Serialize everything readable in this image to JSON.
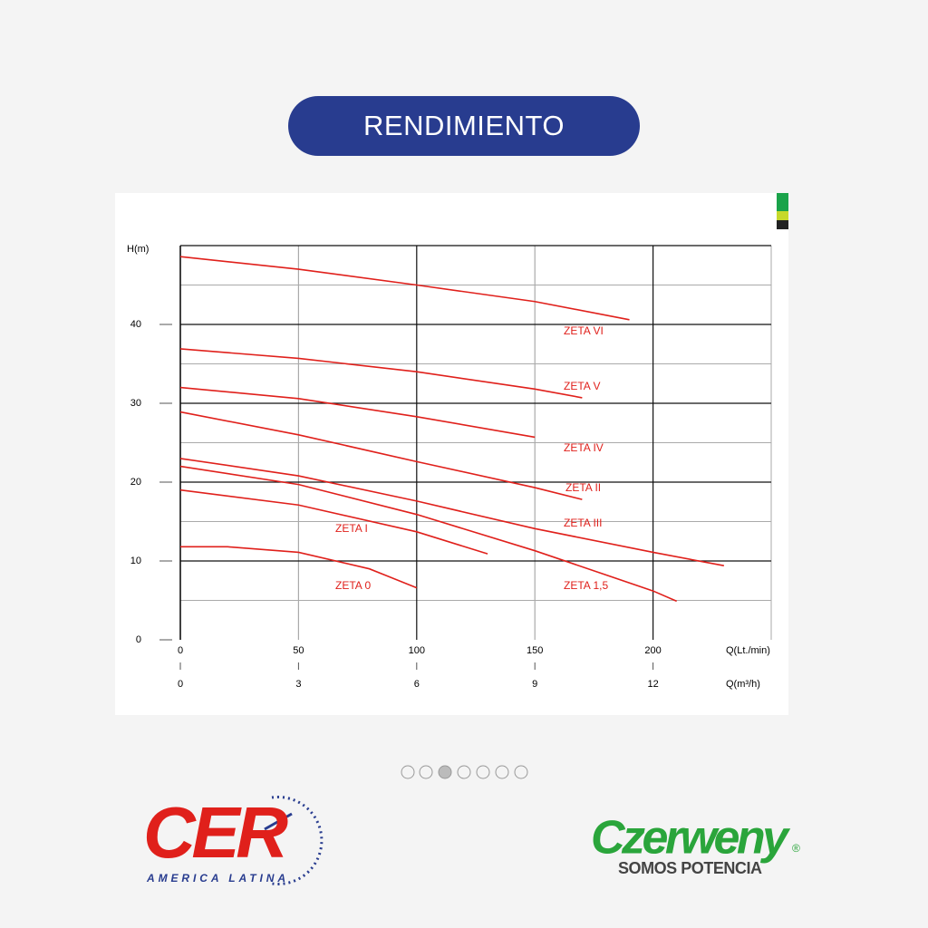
{
  "header": {
    "title": "RENDIMIENTO"
  },
  "chart_data": {
    "type": "line",
    "y_label": "H(m)",
    "x_label": "Q(Lt./min)",
    "x2_label": "Q(m³/h)",
    "xlim": [
      0,
      250
    ],
    "xticks": [
      0,
      50,
      100,
      150,
      200
    ],
    "x2lim": [
      0,
      15
    ],
    "x2ticks": [
      0,
      3,
      6,
      9,
      12
    ],
    "ylim": [
      0,
      50
    ],
    "yticks": [
      0,
      10,
      20,
      30,
      40
    ],
    "y_minor_grid": [
      5,
      15,
      25,
      35,
      45
    ],
    "grid": true,
    "series": [
      {
        "name": "ZETA VI",
        "color": "#e0201b",
        "x": [
          0,
          50,
          100,
          150,
          190
        ],
        "values": [
          48.6,
          47.0,
          45.0,
          42.9,
          40.6
        ]
      },
      {
        "name": "ZETA V",
        "color": "#e0201b",
        "x": [
          0,
          50,
          100,
          150,
          170
        ],
        "values": [
          36.9,
          35.7,
          34.0,
          31.8,
          30.7
        ]
      },
      {
        "name": "ZETA IV",
        "color": "#e0201b",
        "x": [
          0,
          50,
          100,
          150
        ],
        "values": [
          32.0,
          30.6,
          28.3,
          25.7
        ]
      },
      {
        "name": "ZETA II",
        "color": "#e0201b",
        "x": [
          0,
          50,
          100,
          150,
          170
        ],
        "values": [
          28.9,
          26.0,
          22.6,
          19.3,
          17.8
        ]
      },
      {
        "name": "ZETA III",
        "color": "#e0201b",
        "x": [
          0,
          50,
          100,
          150,
          200,
          230
        ],
        "values": [
          23.0,
          20.8,
          17.6,
          14.1,
          11.1,
          9.4
        ]
      },
      {
        "name": "ZETA 1,5",
        "color": "#e0201b",
        "x": [
          0,
          50,
          100,
          150,
          200,
          210
        ],
        "values": [
          22.0,
          19.7,
          15.9,
          11.3,
          6.2,
          4.9
        ]
      },
      {
        "name": "ZETA I",
        "color": "#e0201b",
        "x": [
          0,
          50,
          100,
          130
        ],
        "values": [
          19.0,
          17.1,
          13.7,
          10.9
        ]
      },
      {
        "name": "ZETA 0",
        "color": "#e0201b",
        "x": [
          0,
          20,
          50,
          80,
          100
        ],
        "values": [
          11.8,
          11.8,
          11.1,
          9.0,
          6.6
        ]
      }
    ]
  },
  "logos": {
    "cer": {
      "name": "CER",
      "tagline": "AMERICA LATINA"
    },
    "czerweny": {
      "name": "Czerweny",
      "mark": "®",
      "tagline": "SOMOS POTENCIA"
    }
  }
}
